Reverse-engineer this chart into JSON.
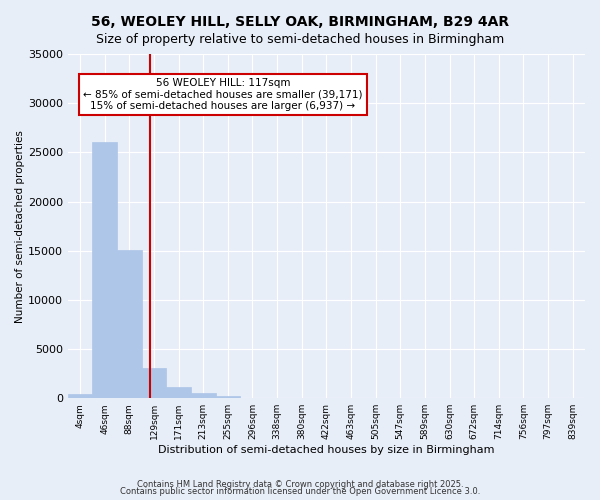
{
  "title": "56, WEOLEY HILL, SELLY OAK, BIRMINGHAM, B29 4AR",
  "subtitle": "Size of property relative to semi-detached houses in Birmingham",
  "xlabel": "Distribution of semi-detached houses by size in Birmingham",
  "ylabel": "Number of semi-detached properties",
  "bin_labels": [
    "4sqm",
    "46sqm",
    "88sqm",
    "129sqm",
    "171sqm",
    "213sqm",
    "255sqm",
    "296sqm",
    "338sqm",
    "380sqm",
    "422sqm",
    "463sqm",
    "505sqm",
    "547sqm",
    "589sqm",
    "630sqm",
    "672sqm",
    "714sqm",
    "756sqm",
    "797sqm",
    "839sqm"
  ],
  "bar_values": [
    400,
    26100,
    15100,
    3100,
    1100,
    500,
    250,
    0,
    0,
    0,
    0,
    0,
    0,
    0,
    0,
    0,
    0,
    0,
    0,
    0,
    0
  ],
  "bar_color": "#aec6e8",
  "bar_edge_color": "#aec6e8",
  "vline_x": 2.85,
  "vline_color": "#cc0000",
  "annotation_text": "56 WEOLEY HILL: 117sqm\n← 85% of semi-detached houses are smaller (39,171)\n15% of semi-detached houses are larger (6,937) →",
  "annotation_box_color": "#ffffff",
  "annotation_box_edge": "#cc0000",
  "ylim": [
    0,
    35000
  ],
  "yticks": [
    0,
    5000,
    10000,
    15000,
    20000,
    25000,
    30000,
    35000
  ],
  "background_color": "#e8eef8",
  "plot_bg_color": "#e8eef8",
  "grid_color": "#ffffff",
  "footer1": "Contains HM Land Registry data © Crown copyright and database right 2025.",
  "footer2": "Contains public sector information licensed under the Open Government Licence 3.0."
}
